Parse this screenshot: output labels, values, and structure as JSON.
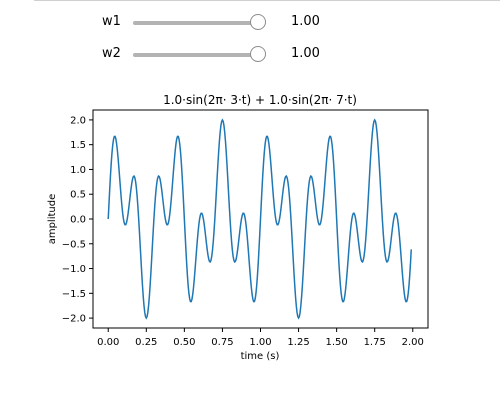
{
  "sliders": [
    {
      "label": "w1",
      "value": "1.00",
      "fraction": 1.0
    },
    {
      "label": "w2",
      "value": "1.00",
      "fraction": 1.0
    }
  ],
  "chart_data": {
    "type": "line",
    "title": "1.0·sin(2π· 3·t) + 1.0·sin(2π· 7·t)",
    "xlabel": "time (s)",
    "ylabel": "amplitude",
    "xlim": [
      -0.1,
      2.1
    ],
    "ylim": [
      -2.2,
      2.2
    ],
    "xticks": [
      0.0,
      0.25,
      0.5,
      0.75,
      1.0,
      1.25,
      1.5,
      1.75,
      2.0
    ],
    "xtick_labels": [
      "0.00",
      "0.25",
      "0.50",
      "0.75",
      "1.00",
      "1.25",
      "1.50",
      "1.75",
      "2.00"
    ],
    "yticks": [
      2.0,
      1.5,
      1.0,
      0.5,
      0.0,
      -0.5,
      -1.0,
      -1.5,
      -2.0
    ],
    "ytick_labels": [
      "2.0",
      "1.5",
      "1.0",
      "0.5",
      "0.0",
      "−0.5",
      "−1.0",
      "−1.5",
      "−2.0"
    ],
    "grid": false,
    "line_color": "#1f77b4",
    "series": [
      {
        "function": "w1*sin(2*pi*3*t) + w2*sin(2*pi*7*t)",
        "w1": 1.0,
        "w2": 1.0,
        "t_range": [
          0,
          1.99
        ],
        "t_step": 0.005
      }
    ]
  }
}
